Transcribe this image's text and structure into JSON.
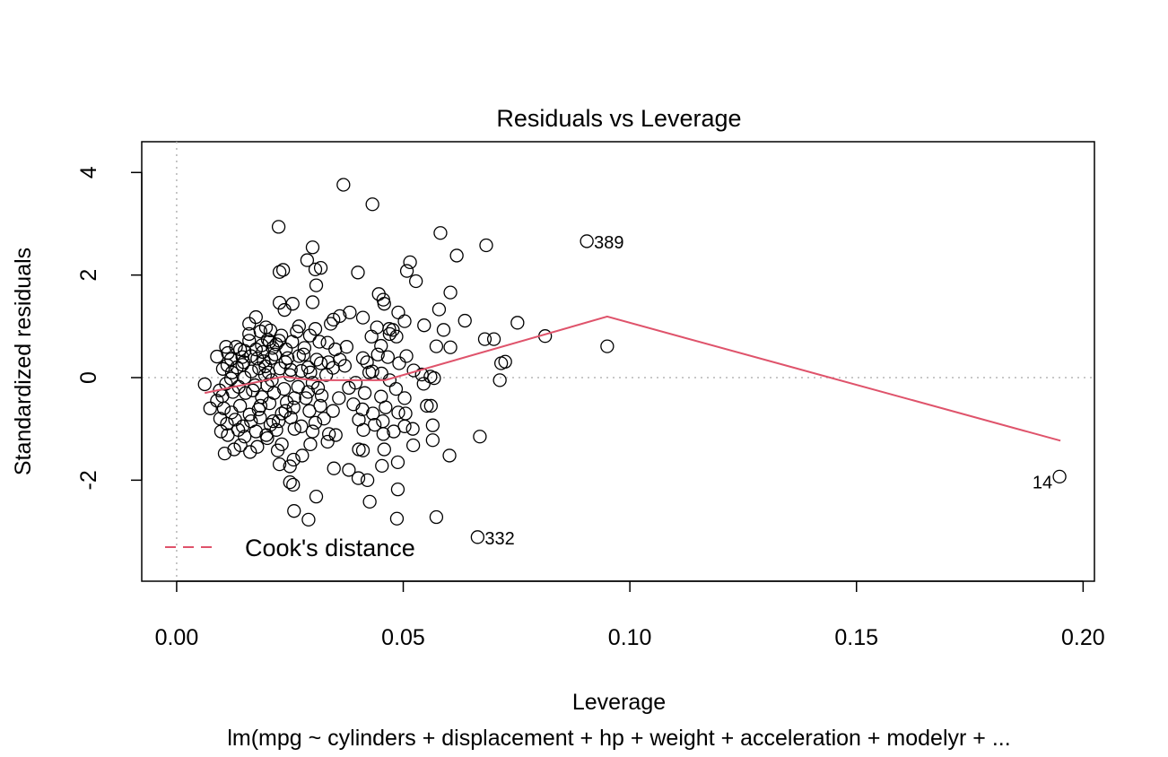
{
  "chart_data": {
    "type": "scatter",
    "title": "Residuals vs Leverage",
    "xlabel": "Leverage",
    "ylabel": "Standardized residuals",
    "subtitle": "lm(mpg ~ cylinders + displacement + hp + weight + acceleration + modelyr +  ...",
    "xlim": [
      -0.0077,
      0.2025
    ],
    "ylim": [
      -3.97,
      4.6
    ],
    "x_ticks": [
      0.0,
      0.05,
      0.1,
      0.15,
      0.2
    ],
    "x_tick_labels": [
      "0.00",
      "0.05",
      "0.10",
      "0.15",
      "0.20"
    ],
    "y_ticks": [
      -2,
      0,
      2,
      4
    ],
    "y_tick_labels": [
      "-2",
      "0",
      "2",
      "4"
    ],
    "reference_lines": {
      "x": 0,
      "y": 0,
      "style": "dotted",
      "color": "#b5b5b5"
    },
    "labeled_points": [
      {
        "label": "389",
        "x": 0.0905,
        "y": 2.66,
        "label_side": "right"
      },
      {
        "label": "14",
        "x": 0.1948,
        "y": -1.93,
        "label_side": "left"
      },
      {
        "label": "332",
        "x": 0.0664,
        "y": -3.11,
        "label_side": "right"
      }
    ],
    "points": [
      [
        0.0368,
        3.76
      ],
      [
        0.0432,
        3.38
      ],
      [
        0.0225,
        2.94
      ],
      [
        0.0582,
        2.82
      ],
      [
        0.0683,
        2.58
      ],
      [
        0.03,
        2.54
      ],
      [
        0.0288,
        2.29
      ],
      [
        0.0515,
        2.25
      ],
      [
        0.0618,
        2.38
      ],
      [
        0.0318,
        2.14
      ],
      [
        0.0306,
        2.11
      ],
      [
        0.0235,
        2.1
      ],
      [
        0.0227,
        2.06
      ],
      [
        0.04,
        2.05
      ],
      [
        0.0508,
        2.08
      ],
      [
        0.0528,
        1.88
      ],
      [
        0.0308,
        1.8
      ],
      [
        0.0446,
        1.63
      ],
      [
        0.0604,
        1.66
      ],
      [
        0.0456,
        1.52
      ],
      [
        0.0458,
        1.44
      ],
      [
        0.0227,
        1.46
      ],
      [
        0.03,
        1.47
      ],
      [
        0.0256,
        1.44
      ],
      [
        0.0238,
        1.32
      ],
      [
        0.0579,
        1.33
      ],
      [
        0.0382,
        1.27
      ],
      [
        0.036,
        1.2
      ],
      [
        0.0346,
        1.13
      ],
      [
        0.0411,
        1.17
      ],
      [
        0.0175,
        1.18
      ],
      [
        0.0489,
        1.27
      ],
      [
        0.0503,
        1.1
      ],
      [
        0.0636,
        1.11
      ],
      [
        0.0546,
        1.02
      ],
      [
        0.0752,
        1.07
      ],
      [
        0.0197,
        0.98
      ],
      [
        0.016,
        1.05
      ],
      [
        0.027,
        1.0
      ],
      [
        0.034,
        1.05
      ],
      [
        0.0306,
        0.95
      ],
      [
        0.0442,
        0.98
      ],
      [
        0.0469,
        0.95
      ],
      [
        0.0477,
        0.93
      ],
      [
        0.0589,
        0.93
      ],
      [
        0.0185,
        0.9
      ],
      [
        0.0207,
        0.92
      ],
      [
        0.0231,
        0.82
      ],
      [
        0.0294,
        0.82
      ],
      [
        0.047,
        0.85
      ],
      [
        0.068,
        0.75
      ],
      [
        0.07,
        0.75
      ],
      [
        0.016,
        0.72
      ],
      [
        0.0201,
        0.74
      ],
      [
        0.0226,
        0.72
      ],
      [
        0.0255,
        0.7
      ],
      [
        0.0333,
        0.68
      ],
      [
        0.0485,
        0.8
      ],
      [
        0.0813,
        0.81
      ],
      [
        0.0131,
        0.6
      ],
      [
        0.014,
        0.55
      ],
      [
        0.015,
        0.52
      ],
      [
        0.0188,
        0.63
      ],
      [
        0.0212,
        0.58
      ],
      [
        0.0241,
        0.55
      ],
      [
        0.0282,
        0.58
      ],
      [
        0.0451,
        0.62
      ],
      [
        0.0573,
        0.61
      ],
      [
        0.0604,
        0.59
      ],
      [
        0.095,
        0.61
      ],
      [
        0.0109,
        0.6
      ],
      [
        0.0113,
        0.48
      ],
      [
        0.0089,
        0.41
      ],
      [
        0.012,
        0.36
      ],
      [
        0.0148,
        0.3
      ],
      [
        0.0164,
        0.42
      ],
      [
        0.0178,
        0.37
      ],
      [
        0.0192,
        0.32
      ],
      [
        0.0217,
        0.45
      ],
      [
        0.0245,
        0.38
      ],
      [
        0.027,
        0.42
      ],
      [
        0.0309,
        0.35
      ],
      [
        0.0318,
        0.28
      ],
      [
        0.0411,
        0.38
      ],
      [
        0.042,
        0.3
      ],
      [
        0.0444,
        0.45
      ],
      [
        0.0466,
        0.4
      ],
      [
        0.0491,
        0.28
      ],
      [
        0.0507,
        0.42
      ],
      [
        0.0716,
        0.28
      ],
      [
        0.0725,
        0.31
      ],
      [
        0.0102,
        0.17
      ],
      [
        0.0112,
        0.24
      ],
      [
        0.0122,
        0.1
      ],
      [
        0.0133,
        0.2
      ],
      [
        0.0145,
        0.25
      ],
      [
        0.0165,
        0.12
      ],
      [
        0.0182,
        0.18
      ],
      [
        0.0196,
        0.22
      ],
      [
        0.0203,
        0.1
      ],
      [
        0.0228,
        0.18
      ],
      [
        0.0252,
        0.15
      ],
      [
        0.0275,
        0.13
      ],
      [
        0.029,
        0.2
      ],
      [
        0.0345,
        0.19
      ],
      [
        0.0371,
        0.23
      ],
      [
        0.0432,
        0.12
      ],
      [
        0.0452,
        0.08
      ],
      [
        0.0523,
        0.14
      ],
      [
        0.0541,
        0.06
      ],
      [
        0.056,
        0.02
      ],
      [
        0.0568,
        -0.01
      ],
      [
        0.0713,
        -0.05
      ],
      [
        0.0062,
        -0.13
      ],
      [
        0.0095,
        -0.25
      ],
      [
        0.0101,
        -0.36
      ],
      [
        0.0109,
        -0.12
      ],
      [
        0.0124,
        -0.28
      ],
      [
        0.0137,
        -0.18
      ],
      [
        0.0152,
        -0.3
      ],
      [
        0.0168,
        -0.25
      ],
      [
        0.0188,
        -0.38
      ],
      [
        0.02,
        -0.15
      ],
      [
        0.0215,
        -0.3
      ],
      [
        0.0237,
        -0.22
      ],
      [
        0.026,
        -0.4
      ],
      [
        0.029,
        -0.28
      ],
      [
        0.032,
        -0.35
      ],
      [
        0.0358,
        -0.4
      ],
      [
        0.0415,
        -0.3
      ],
      [
        0.0451,
        -0.37
      ],
      [
        0.0484,
        -0.22
      ],
      [
        0.0503,
        -0.4
      ],
      [
        0.0545,
        -0.12
      ],
      [
        0.0089,
        -0.45
      ],
      [
        0.0104,
        -0.6
      ],
      [
        0.0121,
        -0.68
      ],
      [
        0.014,
        -0.55
      ],
      [
        0.0161,
        -0.72
      ],
      [
        0.0181,
        -0.62
      ],
      [
        0.0205,
        -0.5
      ],
      [
        0.0232,
        -0.7
      ],
      [
        0.0258,
        -0.58
      ],
      [
        0.0293,
        -0.65
      ],
      [
        0.0317,
        -0.55
      ],
      [
        0.039,
        -0.52
      ],
      [
        0.041,
        -0.62
      ],
      [
        0.0433,
        -0.7
      ],
      [
        0.0461,
        -0.58
      ],
      [
        0.0489,
        -0.68
      ],
      [
        0.0552,
        -0.55
      ],
      [
        0.0561,
        -0.55
      ],
      [
        0.0074,
        -0.6
      ],
      [
        0.0096,
        -0.8
      ],
      [
        0.0111,
        -0.9
      ],
      [
        0.0129,
        -0.82
      ],
      [
        0.0146,
        -0.95
      ],
      [
        0.0164,
        -0.85
      ],
      [
        0.0184,
        -0.78
      ],
      [
        0.0207,
        -0.92
      ],
      [
        0.0225,
        -0.85
      ],
      [
        0.0252,
        -0.78
      ],
      [
        0.0306,
        -0.88
      ],
      [
        0.0325,
        -0.8
      ],
      [
        0.0402,
        -0.82
      ],
      [
        0.0437,
        -0.92
      ],
      [
        0.0455,
        -0.85
      ],
      [
        0.0503,
        -0.95
      ],
      [
        0.0565,
        -0.93
      ],
      [
        0.0098,
        -1.05
      ],
      [
        0.0113,
        -1.12
      ],
      [
        0.0136,
        -1.02
      ],
      [
        0.015,
        -1.15
      ],
      [
        0.0175,
        -1.05
      ],
      [
        0.0198,
        -1.12
      ],
      [
        0.022,
        -1.02
      ],
      [
        0.026,
        -1.0
      ],
      [
        0.03,
        -1.05
      ],
      [
        0.0336,
        -1.1
      ],
      [
        0.0351,
        -1.12
      ],
      [
        0.0412,
        -1.02
      ],
      [
        0.0456,
        -1.1
      ],
      [
        0.0479,
        -1.05
      ],
      [
        0.0521,
        -1.0
      ],
      [
        0.0669,
        -1.15
      ],
      [
        0.0565,
        -1.22
      ],
      [
        0.0106,
        -1.48
      ],
      [
        0.0127,
        -1.4
      ],
      [
        0.0141,
        -1.32
      ],
      [
        0.0162,
        -1.45
      ],
      [
        0.0178,
        -1.35
      ],
      [
        0.02,
        -1.18
      ],
      [
        0.0223,
        -1.42
      ],
      [
        0.0232,
        -1.3
      ],
      [
        0.0277,
        -1.52
      ],
      [
        0.0295,
        -1.3
      ],
      [
        0.0333,
        -1.25
      ],
      [
        0.0402,
        -1.4
      ],
      [
        0.0411,
        -1.42
      ],
      [
        0.0458,
        -1.4
      ],
      [
        0.0522,
        -1.32
      ],
      [
        0.0602,
        -1.52
      ],
      [
        0.0227,
        -1.69
      ],
      [
        0.0258,
        -1.6
      ],
      [
        0.025,
        -1.73
      ],
      [
        0.0347,
        -1.77
      ],
      [
        0.038,
        -1.8
      ],
      [
        0.0453,
        -1.72
      ],
      [
        0.0488,
        -1.65
      ],
      [
        0.025,
        -2.04
      ],
      [
        0.0257,
        -2.09
      ],
      [
        0.0401,
        -1.96
      ],
      [
        0.0421,
        -2.0
      ],
      [
        0.0488,
        -2.18
      ],
      [
        0.0308,
        -2.32
      ],
      [
        0.0426,
        -2.42
      ],
      [
        0.0259,
        -2.6
      ],
      [
        0.0291,
        -2.77
      ],
      [
        0.0486,
        -2.75
      ],
      [
        0.0573,
        -2.72
      ],
      [
        0.03,
        -0.1
      ],
      [
        0.038,
        -0.2
      ],
      [
        0.025,
        0.05
      ],
      [
        0.021,
        -0.05
      ],
      [
        0.015,
        0.0
      ],
      [
        0.012,
        -0.02
      ],
      [
        0.033,
        0.05
      ],
      [
        0.047,
        -0.05
      ],
      [
        0.019,
        0.5
      ],
      [
        0.024,
        0.3
      ],
      [
        0.016,
        0.85
      ],
      [
        0.022,
        0.65
      ],
      [
        0.028,
        0.45
      ],
      [
        0.035,
        0.55
      ],
      [
        0.0145,
        0.4
      ],
      [
        0.0175,
        0.55
      ],
      [
        0.0205,
        0.7
      ],
      [
        0.0265,
        0.9
      ],
      [
        0.0315,
        0.7
      ],
      [
        0.0295,
        0.1
      ],
      [
        0.0268,
        -0.18
      ],
      [
        0.0185,
        -0.55
      ],
      [
        0.024,
        -0.65
      ],
      [
        0.0213,
        -0.85
      ],
      [
        0.0275,
        -0.95
      ],
      [
        0.0345,
        -0.65
      ],
      [
        0.0195,
        0.05
      ],
      [
        0.0285,
        -0.4
      ],
      [
        0.0335,
        0.3
      ],
      [
        0.0375,
        0.6
      ],
      [
        0.043,
        0.8
      ],
      [
        0.0505,
        -0.7
      ],
      [
        0.0425,
        0.1
      ],
      [
        0.0395,
        -0.1
      ],
      [
        0.036,
        0.35
      ],
      [
        0.0173,
        -0.15
      ],
      [
        0.0209,
        0.38
      ],
      [
        0.0243,
        -0.48
      ],
      [
        0.0312,
        -0.2
      ]
    ],
    "cooks_distance_line": {
      "legend_label": "Cook's distance",
      "color": "#df536b",
      "x": [
        0.0062,
        0.0235,
        0.03,
        0.046,
        0.095,
        0.195
      ],
      "y": [
        -0.3,
        0.02,
        -0.05,
        -0.05,
        1.19,
        -1.23
      ]
    }
  }
}
